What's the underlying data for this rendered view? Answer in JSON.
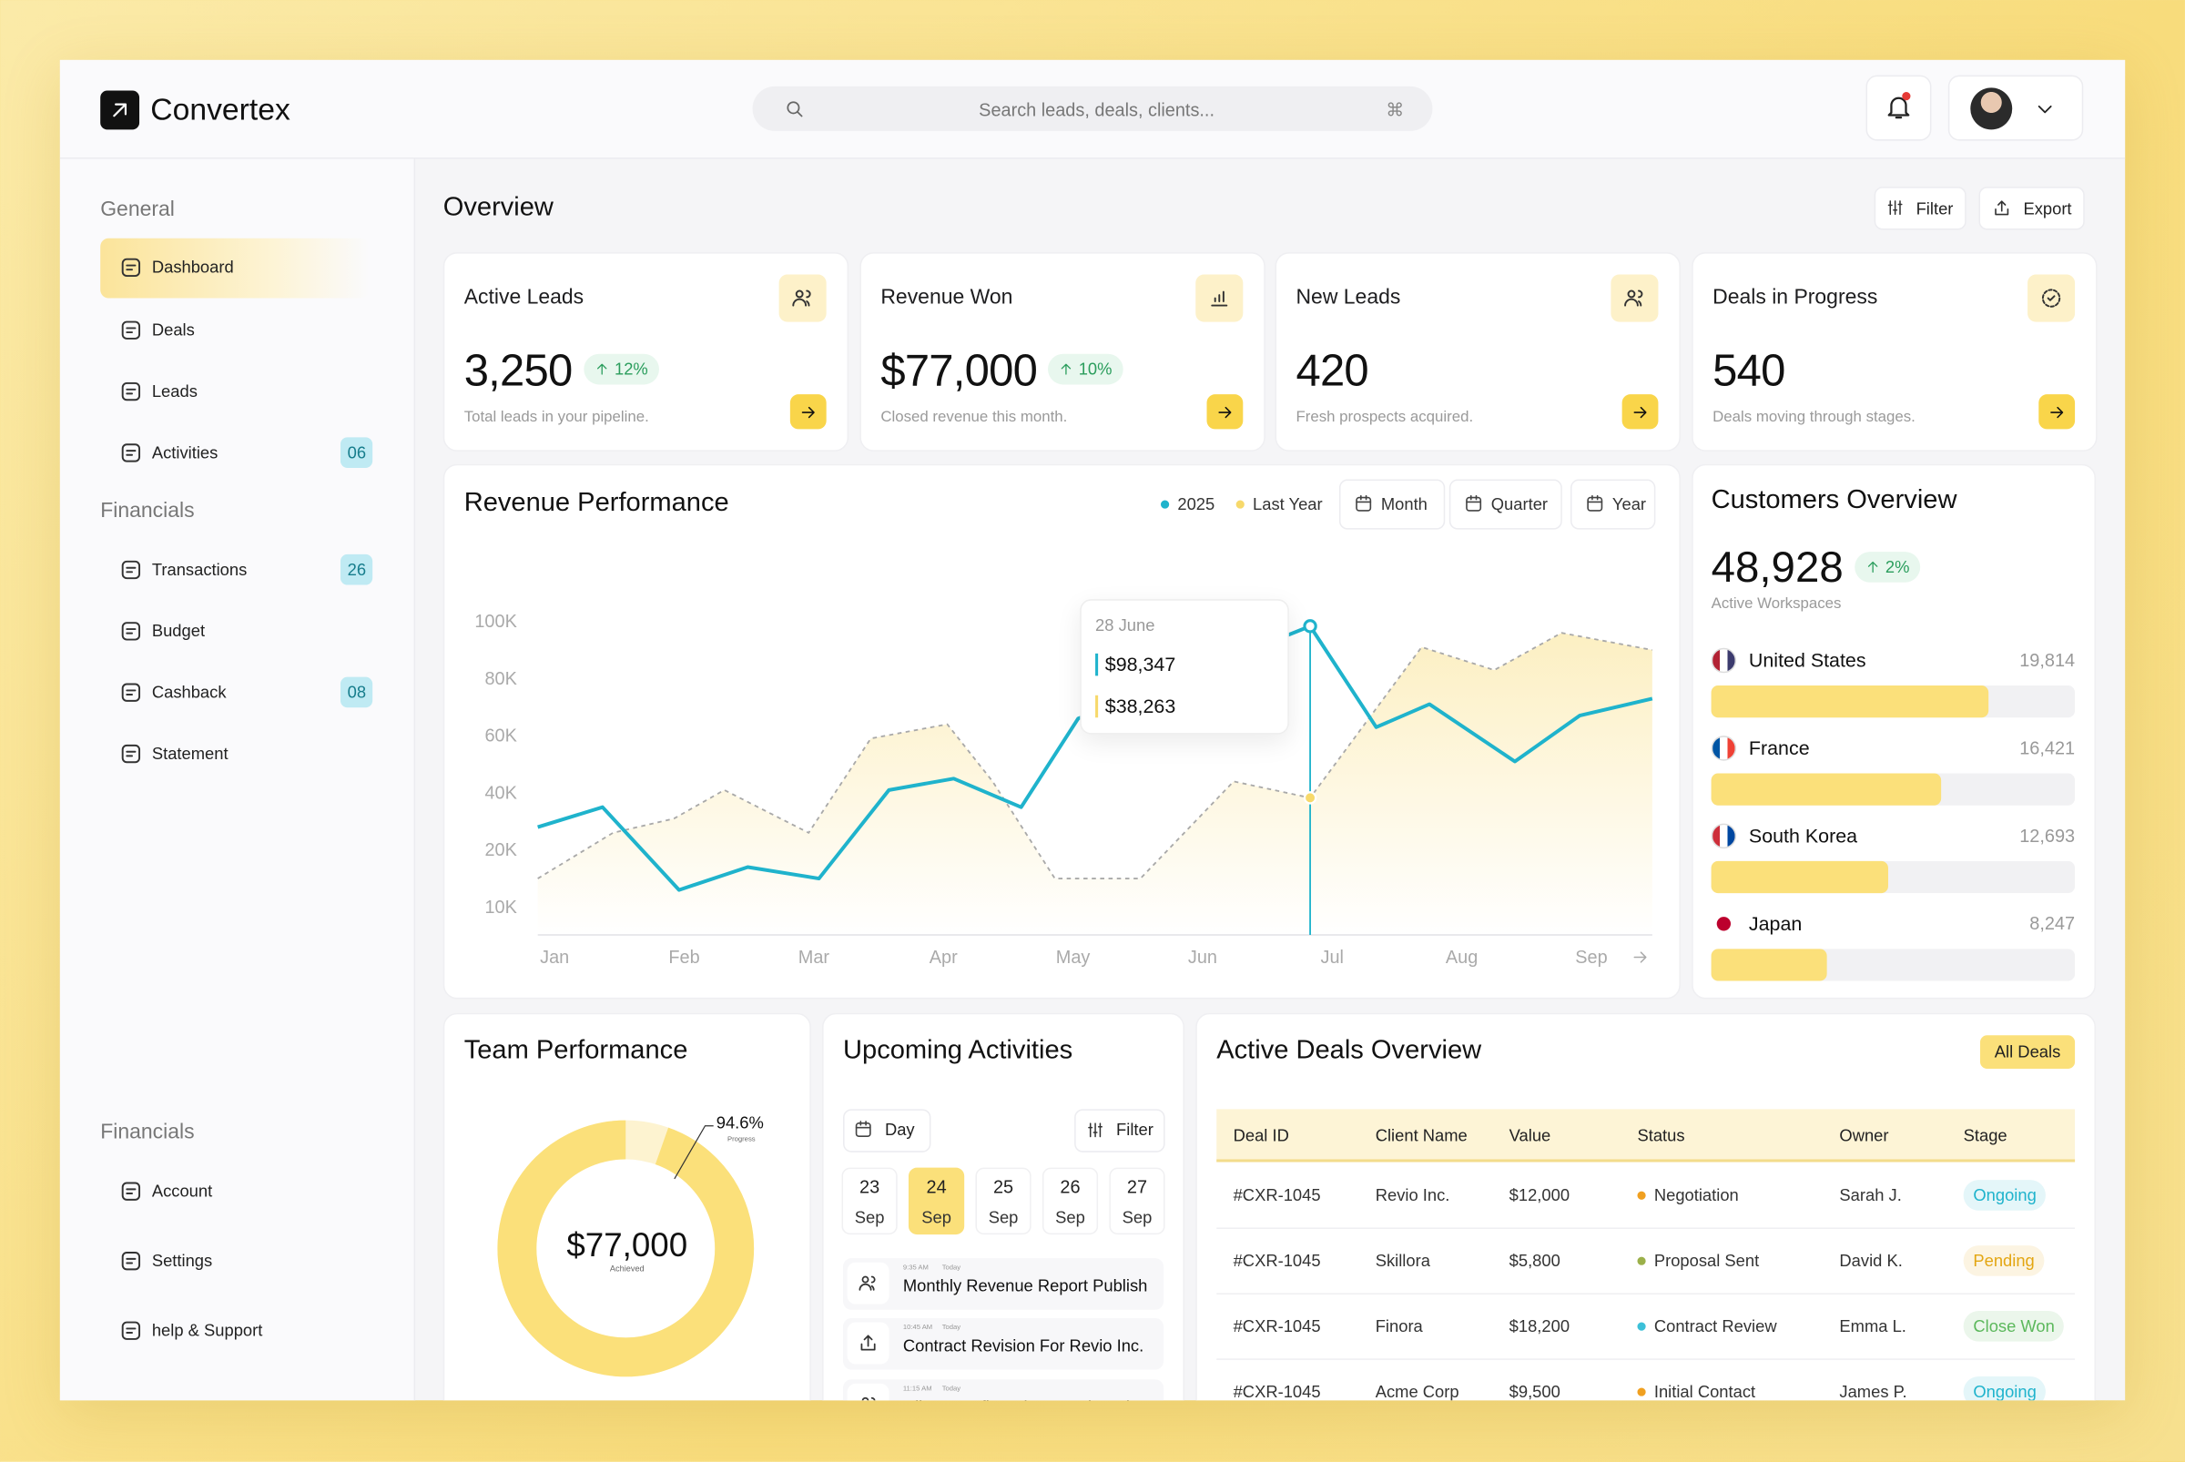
{
  "header": {
    "brand": "Convertex",
    "search_placeholder": "Search leads, deals, clients...",
    "search_shortcut": "⌘"
  },
  "sidebar": {
    "sections": [
      {
        "title": "General",
        "items": [
          {
            "label": "Dashboard",
            "active": true
          },
          {
            "label": "Deals"
          },
          {
            "label": "Leads"
          },
          {
            "label": "Activities",
            "badge": "06"
          }
        ]
      },
      {
        "title": "Financials",
        "items": [
          {
            "label": "Transactions",
            "badge": "26"
          },
          {
            "label": "Budget"
          },
          {
            "label": "Cashback",
            "badge": "08"
          },
          {
            "label": "Statement"
          }
        ]
      },
      {
        "title": "Financials",
        "items": [
          {
            "label": "Account"
          },
          {
            "label": "Settings"
          },
          {
            "label": "help & Support"
          }
        ]
      }
    ]
  },
  "overview": {
    "title": "Overview",
    "filter": "Filter",
    "export": "Export"
  },
  "kpis": [
    {
      "title": "Active Leads",
      "value": "3,250",
      "change": "12%",
      "description": "Total leads in your pipeline."
    },
    {
      "title": "Revenue Won",
      "value": "$77,000",
      "change": "10%",
      "description": "Closed revenue this month."
    },
    {
      "title": "New Leads",
      "value": "420",
      "description": "Fresh prospects acquired."
    },
    {
      "title": "Deals in Progress",
      "value": "540",
      "description": "Deals moving through stages."
    }
  ],
  "revenue_controls": {
    "periods": [
      "Month",
      "Quarter",
      "Year"
    ]
  },
  "chart_data": [
    {
      "type": "line",
      "title": "Revenue Performance",
      "xlim": [
        -0.13,
        8.47
      ],
      "xticks": [
        {
          "value": 0,
          "label": "Jan"
        },
        {
          "value": 1,
          "label": "Feb"
        },
        {
          "value": 2,
          "label": "Mar"
        },
        {
          "value": 3,
          "label": "Apr"
        },
        {
          "value": 4,
          "label": "May"
        },
        {
          "value": 5,
          "label": "Jun"
        },
        {
          "value": 6,
          "label": "Jul"
        },
        {
          "value": 7,
          "label": "Aug"
        },
        {
          "value": 8,
          "label": "Sep"
        }
      ],
      "ylim": [
        10000,
        100000
      ],
      "yticks": [
        {
          "value": 10000,
          "label": "10K"
        },
        {
          "value": 20000,
          "label": "20K"
        },
        {
          "value": 40000,
          "label": "40K"
        },
        {
          "value": 60000,
          "label": "60K"
        },
        {
          "value": 80000,
          "label": "80K"
        },
        {
          "value": 100000,
          "label": "100K"
        }
      ],
      "series": [
        {
          "name": "2025",
          "color": "#1fb3cc",
          "x": [
            -0.13,
            0.37,
            0.96,
            1.49,
            2.04,
            2.58,
            3.08,
            3.6,
            4.04,
            5.83,
            6.34,
            6.75,
            7.41,
            7.91,
            8.47
          ],
          "values": [
            28000,
            35000,
            13000,
            17000,
            15000,
            41000,
            45000,
            35000,
            66000,
            98347,
            63000,
            71000,
            51000,
            67000,
            73000
          ]
        },
        {
          "name": "Last Year",
          "color": "#f7d96b",
          "line_color": "#a9a9a9",
          "style": "dashed",
          "x": [
            -0.13,
            0.45,
            0.92,
            1.31,
            1.96,
            2.44,
            3.03,
            3.38,
            3.86,
            4.52,
            5.24,
            5.83,
            6.69,
            7.25,
            7.77,
            8.47
          ],
          "values": [
            15000,
            26000,
            31000,
            41000,
            26000,
            59000,
            64000,
            44000,
            15000,
            15000,
            44000,
            38263,
            91000,
            83000,
            96000,
            90000
          ]
        }
      ],
      "tooltip": {
        "title": "28 June",
        "items": [
          "$98,347",
          "$38,263"
        ]
      }
    },
    {
      "type": "bar",
      "orientation": "horizontal",
      "title": "Customers Overview",
      "headline": "48,928",
      "change": "2%",
      "subtitle": "Active Workspaces",
      "categories": [
        "United States",
        "France",
        "South Korea",
        "Japan"
      ],
      "values": [
        19814,
        16421,
        12693,
        8247
      ],
      "value_labels": [
        "19,814",
        "16,421",
        "12,693",
        "8,247"
      ],
      "xlim": [
        0,
        26000
      ],
      "color": "#fbe07a",
      "flags": [
        [
          "#b22234",
          "#ffffff",
          "#3c3b6e"
        ],
        [
          "#0055a4",
          "#ffffff",
          "#ef4135"
        ],
        [
          "#cd2e3a",
          "#ffffff",
          "#0047a0"
        ],
        [
          "#bc002d"
        ]
      ]
    },
    {
      "type": "pie",
      "title": "Team Performance",
      "values": [
        94.6
      ],
      "value_labels": [
        "94.6%"
      ],
      "value_caption": "Progress",
      "center_label": "$77,000",
      "center_caption": "Achieved",
      "color": "#fbe07a",
      "track_color": "#fdf3d0"
    }
  ],
  "activities": {
    "title": "Upcoming Activities",
    "view": "Day",
    "filter": "Filter",
    "dates": [
      {
        "day": "23",
        "month": "Sep"
      },
      {
        "day": "24",
        "month": "Sep",
        "selected": true
      },
      {
        "day": "25",
        "month": "Sep"
      },
      {
        "day": "26",
        "month": "Sep"
      },
      {
        "day": "27",
        "month": "Sep"
      }
    ],
    "items": [
      {
        "time": "9:35 AM",
        "when": "Today",
        "title": "Monthly Revenue Report Publish"
      },
      {
        "time": "10:45 AM",
        "when": "Today",
        "title": "Contract Revision For Revio Inc."
      },
      {
        "time": "11:15 AM",
        "when": "Today",
        "title": "Client Confirmed Expansion Plan"
      }
    ]
  },
  "deals": {
    "title": "Active Deals Overview",
    "button": "All Deals",
    "columns": [
      "Deal ID",
      "Client Name",
      "Value",
      "Status",
      "Owner",
      "Stage"
    ],
    "rows": [
      [
        "#CXR-1045",
        "Revio Inc.",
        "$12,000",
        "Negotiation",
        "Sarah J.",
        "Ongoing"
      ],
      [
        "#CXR-1045",
        "Skillora",
        "$5,800",
        "Proposal Sent",
        "David K.",
        "Pending"
      ],
      [
        "#CXR-1045",
        "Finora",
        "$18,200",
        "Contract Review",
        "Emma L.",
        "Close Won"
      ],
      [
        "#CXR-1045",
        "Acme Corp",
        "$9,500",
        "Initial Contact",
        "James P.",
        "Ongoing"
      ]
    ],
    "status_colors": [
      "#f0a020",
      "#9bb04a",
      "#3cc0d8",
      "#f0a020"
    ],
    "stage_colors": [
      "#1fb3cc",
      "#e3a612",
      "#5cb85c",
      "#1fb3cc"
    ]
  }
}
